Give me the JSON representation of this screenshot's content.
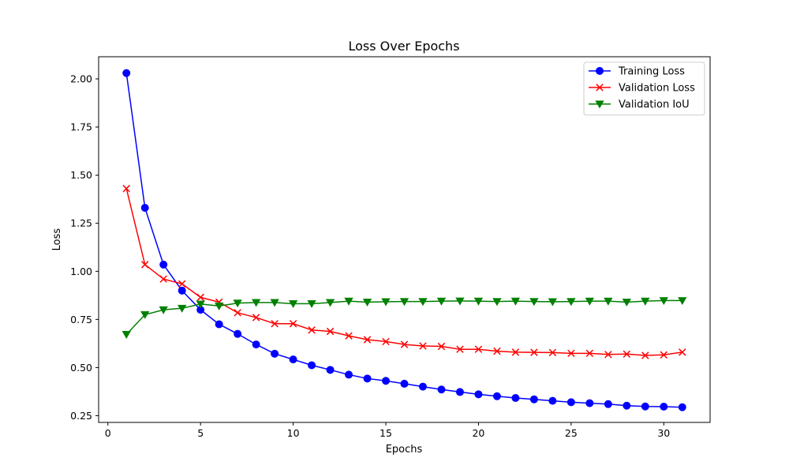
{
  "chart_data": {
    "type": "line",
    "title": "Loss Over Epochs",
    "xlabel": "Epochs",
    "ylabel": "Loss",
    "xlim": [
      -0.5,
      32.5
    ],
    "ylim": [
      0.215,
      2.115
    ],
    "xticks": [
      0,
      5,
      10,
      15,
      20,
      25,
      30
    ],
    "yticks": [
      0.25,
      0.5,
      0.75,
      1.0,
      1.25,
      1.5,
      1.75,
      2.0
    ],
    "grid": false,
    "legend_position": "top-right",
    "x": [
      1,
      2,
      3,
      4,
      5,
      6,
      7,
      8,
      9,
      10,
      11,
      12,
      13,
      14,
      15,
      16,
      17,
      18,
      19,
      20,
      21,
      22,
      23,
      24,
      25,
      26,
      27,
      28,
      29,
      30,
      31
    ],
    "series": [
      {
        "name": "Training Loss",
        "color": "#0000ff",
        "marker": "circle",
        "values": [
          2.03,
          1.33,
          1.035,
          0.9,
          0.8,
          0.725,
          0.675,
          0.62,
          0.572,
          0.542,
          0.512,
          0.488,
          0.463,
          0.443,
          0.431,
          0.416,
          0.401,
          0.386,
          0.373,
          0.361,
          0.351,
          0.342,
          0.335,
          0.327,
          0.32,
          0.315,
          0.31,
          0.302,
          0.298,
          0.297,
          0.294
        ]
      },
      {
        "name": "Validation Loss",
        "color": "#ff0000",
        "marker": "x",
        "values": [
          1.43,
          1.035,
          0.96,
          0.935,
          0.865,
          0.84,
          0.785,
          0.76,
          0.728,
          0.728,
          0.695,
          0.688,
          0.665,
          0.645,
          0.635,
          0.62,
          0.612,
          0.61,
          0.595,
          0.595,
          0.585,
          0.58,
          0.579,
          0.578,
          0.574,
          0.574,
          0.568,
          0.57,
          0.563,
          0.566,
          0.58
        ]
      },
      {
        "name": "Validation IoU",
        "color": "#008000",
        "marker": "triangle-down",
        "values": [
          0.672,
          0.775,
          0.8,
          0.808,
          0.83,
          0.82,
          0.835,
          0.838,
          0.838,
          0.832,
          0.832,
          0.838,
          0.845,
          0.84,
          0.842,
          0.843,
          0.843,
          0.845,
          0.846,
          0.845,
          0.843,
          0.845,
          0.843,
          0.842,
          0.843,
          0.845,
          0.845,
          0.84,
          0.845,
          0.848,
          0.848
        ]
      }
    ]
  }
}
